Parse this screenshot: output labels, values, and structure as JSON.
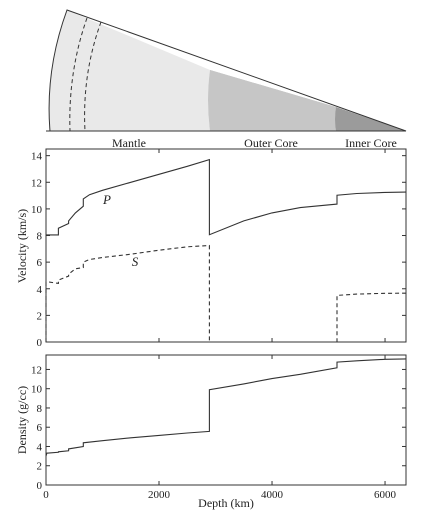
{
  "cross_section": {
    "labels": [
      "Mantle",
      "Outer Core",
      "Inner Core"
    ],
    "colors": {
      "mantle": "#e9e9e9",
      "outer_core": "#c6c6c6",
      "inner_core": "#9b9b9b",
      "outline": "#333333"
    }
  },
  "chart_data": [
    {
      "type": "line",
      "title": "",
      "xlabel": "Depth (km)",
      "ylabel": "Velocity (km/s)",
      "xlim": [
        0,
        6371
      ],
      "ylim": [
        0,
        14.5
      ],
      "xticks": [
        0,
        2000,
        4000,
        6000
      ],
      "yticks": [
        0,
        2,
        4,
        6,
        8,
        10,
        12,
        14
      ],
      "grid": false,
      "series": [
        {
          "name": "P",
          "style": "solid",
          "points": [
            [
              0,
              8.0
            ],
            [
              15,
              8.05
            ],
            [
              60,
              8.05
            ],
            [
              220,
              8.05
            ],
            [
              220,
              8.55
            ],
            [
              400,
              8.9
            ],
            [
              400,
              9.1
            ],
            [
              520,
              9.7
            ],
            [
              660,
              10.2
            ],
            [
              660,
              10.75
            ],
            [
              770,
              11.07
            ],
            [
              1000,
              11.4
            ],
            [
              1500,
              12.0
            ],
            [
              2000,
              12.6
            ],
            [
              2500,
              13.2
            ],
            [
              2891,
              13.7
            ],
            [
              2891,
              8.06
            ],
            [
              3500,
              9.1
            ],
            [
              4000,
              9.7
            ],
            [
              4500,
              10.1
            ],
            [
              5150,
              10.36
            ],
            [
              5150,
              11.03
            ],
            [
              5500,
              11.16
            ],
            [
              6000,
              11.24
            ],
            [
              6371,
              11.26
            ]
          ]
        },
        {
          "name": "S",
          "style": "dashed",
          "points": [
            [
              0,
              0.0
            ],
            [
              0,
              4.5
            ],
            [
              60,
              4.5
            ],
            [
              220,
              4.4
            ],
            [
              220,
              4.65
            ],
            [
              400,
              4.95
            ],
            [
              400,
              5.1
            ],
            [
              520,
              5.5
            ],
            [
              660,
              5.6
            ],
            [
              660,
              6.0
            ],
            [
              770,
              6.2
            ],
            [
              1000,
              6.35
            ],
            [
              1500,
              6.6
            ],
            [
              2000,
              6.9
            ],
            [
              2500,
              7.15
            ],
            [
              2891,
              7.25
            ],
            [
              2891,
              0.0
            ],
            [
              5150,
              0.0
            ],
            [
              5150,
              3.5
            ],
            [
              5500,
              3.6
            ],
            [
              6000,
              3.66
            ],
            [
              6371,
              3.67
            ]
          ]
        }
      ]
    },
    {
      "type": "line",
      "title": "",
      "xlabel": "Depth (km)",
      "ylabel": "Density (g/cc)",
      "xlim": [
        0,
        6371
      ],
      "ylim": [
        0,
        13.5
      ],
      "xticks": [
        0,
        2000,
        4000,
        6000
      ],
      "yticks": [
        0,
        2,
        4,
        6,
        8,
        10,
        12
      ],
      "grid": false,
      "series": [
        {
          "style": "solid",
          "points": [
            [
              0,
              3.0
            ],
            [
              15,
              3.3
            ],
            [
              220,
              3.4
            ],
            [
              220,
              3.45
            ],
            [
              400,
              3.55
            ],
            [
              400,
              3.75
            ],
            [
              660,
              4.0
            ],
            [
              660,
              4.38
            ],
            [
              1000,
              4.6
            ],
            [
              1500,
              4.9
            ],
            [
              2000,
              5.15
            ],
            [
              2500,
              5.4
            ],
            [
              2891,
              5.57
            ],
            [
              2891,
              9.9
            ],
            [
              3500,
              10.5
            ],
            [
              4000,
              11.05
            ],
            [
              4500,
              11.5
            ],
            [
              5150,
              12.17
            ],
            [
              5150,
              12.76
            ],
            [
              5500,
              12.9
            ],
            [
              6000,
              13.05
            ],
            [
              6371,
              13.09
            ]
          ]
        }
      ]
    }
  ]
}
